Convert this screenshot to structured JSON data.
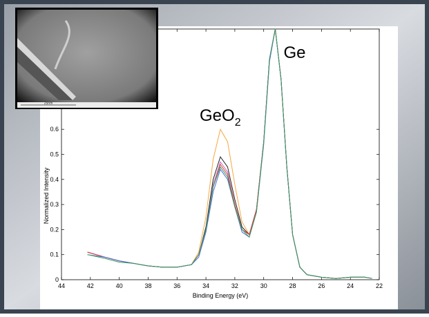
{
  "chart_data": {
    "type": "line",
    "xlabel": "Binding Energy (eV)",
    "ylabel": "Normalized Intensity",
    "x": [
      42.2,
      41,
      40,
      39,
      38,
      37,
      36,
      35,
      34.5,
      34,
      33.5,
      33,
      32.5,
      32,
      31.5,
      31,
      30.5,
      30,
      29.6,
      29.2,
      28.8,
      28.4,
      28,
      27.5,
      27,
      26,
      25,
      24,
      23,
      22.5
    ],
    "series": [
      {
        "color": "#f4a742",
        "values": [
          0.11,
          0.09,
          0.075,
          0.065,
          0.055,
          0.05,
          0.05,
          0.06,
          0.11,
          0.25,
          0.48,
          0.6,
          0.55,
          0.38,
          0.23,
          0.18,
          0.28,
          0.55,
          0.88,
          1.0,
          0.8,
          0.45,
          0.18,
          0.05,
          0.02,
          0.01,
          0.005,
          0.01,
          0.01,
          0.005
        ]
      },
      {
        "color": "#222222",
        "values": [
          0.11,
          0.09,
          0.075,
          0.065,
          0.055,
          0.05,
          0.05,
          0.06,
          0.1,
          0.21,
          0.4,
          0.49,
          0.45,
          0.32,
          0.21,
          0.18,
          0.28,
          0.55,
          0.88,
          1.0,
          0.8,
          0.45,
          0.18,
          0.05,
          0.02,
          0.01,
          0.005,
          0.01,
          0.01,
          0.005
        ]
      },
      {
        "color": "#c070c0",
        "values": [
          0.11,
          0.09,
          0.075,
          0.065,
          0.055,
          0.05,
          0.05,
          0.06,
          0.1,
          0.2,
          0.38,
          0.47,
          0.43,
          0.3,
          0.2,
          0.18,
          0.28,
          0.55,
          0.88,
          1.0,
          0.8,
          0.45,
          0.18,
          0.05,
          0.02,
          0.01,
          0.005,
          0.01,
          0.01,
          0.005
        ]
      },
      {
        "color": "#e04040",
        "values": [
          0.11,
          0.09,
          0.075,
          0.065,
          0.055,
          0.05,
          0.05,
          0.06,
          0.1,
          0.2,
          0.37,
          0.46,
          0.42,
          0.3,
          0.2,
          0.18,
          0.28,
          0.55,
          0.88,
          1.0,
          0.8,
          0.45,
          0.18,
          0.05,
          0.02,
          0.01,
          0.005,
          0.01,
          0.01,
          0.005
        ]
      },
      {
        "color": "#4a6ee0",
        "values": [
          0.1,
          0.09,
          0.075,
          0.065,
          0.055,
          0.05,
          0.05,
          0.06,
          0.09,
          0.19,
          0.35,
          0.44,
          0.4,
          0.29,
          0.19,
          0.17,
          0.27,
          0.54,
          0.87,
          1.0,
          0.8,
          0.45,
          0.18,
          0.05,
          0.02,
          0.01,
          0.005,
          0.01,
          0.01,
          0.005
        ]
      },
      {
        "color": "#3a9a5a",
        "values": [
          0.1,
          0.085,
          0.07,
          0.065,
          0.055,
          0.05,
          0.05,
          0.06,
          0.1,
          0.2,
          0.37,
          0.45,
          0.41,
          0.29,
          0.2,
          0.17,
          0.27,
          0.55,
          0.88,
          1.0,
          0.8,
          0.45,
          0.18,
          0.05,
          0.02,
          0.01,
          0.005,
          0.01,
          0.01,
          0.005
        ]
      }
    ],
    "xlim": [
      44,
      22
    ],
    "xticks": [
      44,
      42,
      40,
      38,
      36,
      34,
      32,
      30,
      28,
      26,
      24,
      22
    ],
    "ylim": [
      0,
      1
    ],
    "yticks": [
      0,
      0.1,
      0.2,
      0.3,
      0.4,
      0.5,
      0.6
    ],
    "annotations": [
      {
        "text": "GeO",
        "subscript": "2",
        "x": 33,
        "y": 0.6
      },
      {
        "text": "Ge",
        "x": 29.2,
        "y": 1
      }
    ],
    "inset": {
      "scale_label": "25nm"
    }
  }
}
